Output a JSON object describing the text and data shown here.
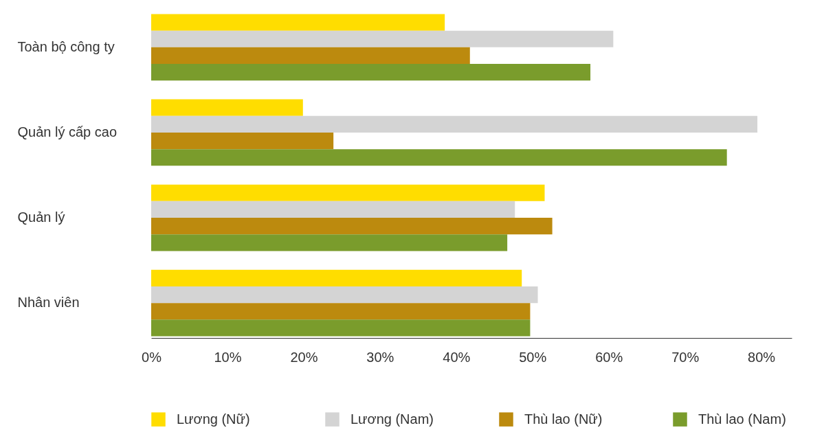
{
  "chart_data": {
    "type": "bar",
    "orientation": "horizontal",
    "categories": [
      "Toàn bộ công ty",
      "Quản lý cấp cao",
      "Quản lý",
      "Nhân viên"
    ],
    "series": [
      {
        "name": "Lương (Nữ)",
        "color": "#ffdd00",
        "values": [
          38.5,
          19.9,
          51.6,
          48.6
        ]
      },
      {
        "name": "Lương (Nam)",
        "color": "#d4d4d4",
        "values": [
          60.6,
          79.5,
          47.7,
          50.7
        ]
      },
      {
        "name": "Thù lao (Nữ)",
        "color": "#bc8a0e",
        "values": [
          41.8,
          23.9,
          52.6,
          49.7
        ]
      },
      {
        "name": "Thù lao (Nam)",
        "color": "#7a9c2c",
        "values": [
          57.6,
          75.5,
          46.7,
          49.7
        ]
      }
    ],
    "xlim": [
      0,
      84
    ],
    "xticks": [
      {
        "value": 0,
        "label": "0%"
      },
      {
        "value": 10,
        "label": "10%"
      },
      {
        "value": 20,
        "label": "20%"
      },
      {
        "value": 30,
        "label": "30%"
      },
      {
        "value": 40,
        "label": "40%"
      },
      {
        "value": 50,
        "label": "50%"
      },
      {
        "value": 60,
        "label": "60%"
      },
      {
        "value": 70,
        "label": "70%"
      },
      {
        "value": 80,
        "label": "80%"
      }
    ],
    "grid": false,
    "legend": "bottom"
  }
}
